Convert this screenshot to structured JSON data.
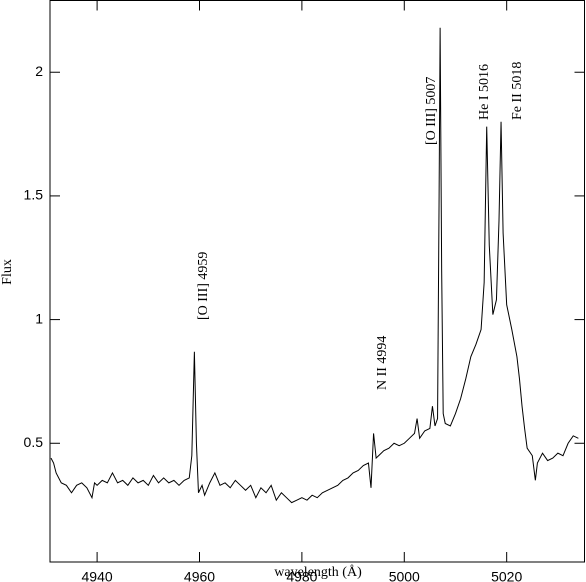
{
  "chart_data": {
    "type": "line",
    "xlabel": "wavelength (Å)",
    "ylabel": "Flux",
    "xlim": [
      4930.8,
      5035.2
    ],
    "ylim": [
      0.02,
      2.29
    ],
    "xticks": [
      4940,
      4960,
      4980,
      5000,
      5020
    ],
    "yticks": [
      0.5,
      1,
      1.5,
      2
    ],
    "annotations": [
      "[O III] 4959",
      "N II 4994",
      "[O III] 5007",
      "He I 5016",
      "Fe II 5018"
    ],
    "series": [
      {
        "color": "#000000",
        "x": [
          4931,
          4931.5,
          4932,
          4933,
          4934,
          4935,
          4936,
          4937,
          4938,
          4939,
          4939.5,
          4940,
          4941,
          4942,
          4943,
          4944,
          4945,
          4946,
          4947,
          4948,
          4949,
          4950,
          4951,
          4952,
          4953,
          4954,
          4955,
          4956,
          4957,
          4958,
          4958.5,
          4959,
          4959.4,
          4959.8,
          4960.5,
          4961,
          4962,
          4963,
          4964,
          4965,
          4966,
          4967,
          4968,
          4969,
          4970,
          4971,
          4972,
          4973,
          4974,
          4975,
          4976,
          4977,
          4978,
          4979,
          4980,
          4981,
          4982,
          4983,
          4984,
          4985,
          4986,
          4987,
          4988,
          4989,
          4990,
          4991,
          4992,
          4993,
          4993.5,
          4994,
          4994.5,
          4995,
          4996,
          4997,
          4998,
          4999,
          5000,
          5001,
          5002,
          5002.5,
          5003,
          5004,
          5005,
          5005.5,
          5006,
          5006.5,
          5006.8,
          5007,
          5007.3,
          5007.6,
          5008,
          5009,
          5010,
          5011,
          5012,
          5013,
          5014,
          5015,
          5015.6,
          5016.1,
          5016.6,
          5017.3,
          5018,
          5018.5,
          5018.9,
          5019.3,
          5020,
          5021,
          5022,
          5022.5,
          5023,
          5023.5,
          5024,
          5025,
          5025.6,
          5026,
          5027,
          5028,
          5029,
          5030,
          5031,
          5032,
          5033,
          5034
        ],
        "values": [
          0.44,
          0.42,
          0.38,
          0.34,
          0.33,
          0.3,
          0.33,
          0.34,
          0.32,
          0.28,
          0.34,
          0.33,
          0.35,
          0.34,
          0.38,
          0.34,
          0.35,
          0.33,
          0.36,
          0.34,
          0.35,
          0.33,
          0.37,
          0.34,
          0.36,
          0.34,
          0.35,
          0.33,
          0.35,
          0.36,
          0.45,
          0.87,
          0.5,
          0.3,
          0.33,
          0.29,
          0.34,
          0.38,
          0.33,
          0.34,
          0.32,
          0.35,
          0.33,
          0.31,
          0.33,
          0.28,
          0.32,
          0.3,
          0.33,
          0.27,
          0.3,
          0.28,
          0.26,
          0.27,
          0.28,
          0.27,
          0.29,
          0.28,
          0.3,
          0.31,
          0.32,
          0.33,
          0.35,
          0.36,
          0.38,
          0.39,
          0.41,
          0.42,
          0.32,
          0.54,
          0.44,
          0.45,
          0.47,
          0.48,
          0.5,
          0.49,
          0.5,
          0.52,
          0.54,
          0.6,
          0.52,
          0.55,
          0.56,
          0.65,
          0.57,
          0.6,
          1.5,
          2.18,
          1.2,
          0.62,
          0.58,
          0.57,
          0.62,
          0.68,
          0.76,
          0.85,
          0.9,
          0.96,
          1.15,
          1.78,
          1.3,
          1.02,
          1.08,
          1.4,
          1.8,
          1.35,
          1.06,
          0.96,
          0.85,
          0.76,
          0.65,
          0.56,
          0.48,
          0.45,
          0.35,
          0.42,
          0.46,
          0.43,
          0.44,
          0.46,
          0.45,
          0.5,
          0.53,
          0.52
        ]
      }
    ]
  }
}
